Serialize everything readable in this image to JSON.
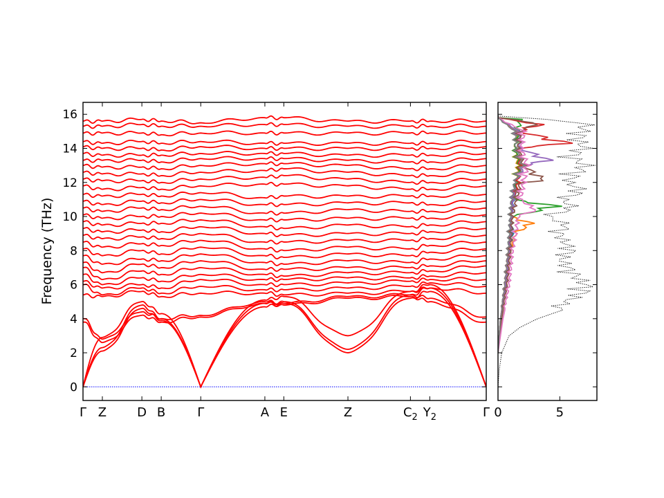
{
  "chart_data": [
    {
      "type": "line",
      "title": "",
      "ylabel": "Frequency (THz)",
      "xlabel": "",
      "ylim": [
        -0.8,
        16.7
      ],
      "yticks": [
        0,
        2,
        4,
        6,
        8,
        10,
        12,
        14,
        16
      ],
      "x_points": [
        {
          "label": "Γ",
          "sub": "",
          "pos": 0.0
        },
        {
          "label": "Z",
          "sub": "",
          "pos": 0.048
        },
        {
          "label": "D",
          "sub": "",
          "pos": 0.146
        },
        {
          "label": "B",
          "sub": "",
          "pos": 0.194
        },
        {
          "label": "Γ",
          "sub": "",
          "pos": 0.292
        },
        {
          "label": "A",
          "sub": "",
          "pos": 0.451
        },
        {
          "label": "E",
          "sub": "",
          "pos": 0.498
        },
        {
          "label": "Z",
          "sub": "",
          "pos": 0.657
        },
        {
          "label": "C",
          "sub": "2",
          "pos": 0.812
        },
        {
          "label": "Y",
          "sub": "2",
          "pos": 0.86
        },
        {
          "label": "Γ",
          "sub": "",
          "pos": 1.0
        }
      ],
      "series_color": "#ff0000",
      "zero_line_color": "#0000ff",
      "acoustic_branches": [
        {
          "name": "TA1",
          "values": [
            0.0,
            2.1,
            4.6,
            3.9,
            0.0,
            4.7,
            4.9,
            2.0,
            5.2,
            5.6,
            0.0
          ]
        },
        {
          "name": "TA2",
          "values": [
            0.0,
            2.3,
            4.8,
            4.0,
            0.0,
            4.9,
            5.0,
            2.2,
            5.4,
            5.8,
            0.0
          ]
        },
        {
          "name": "LA",
          "values": [
            0.0,
            2.9,
            5.0,
            4.3,
            0.0,
            5.1,
            5.3,
            3.0,
            5.6,
            6.0,
            0.0
          ]
        }
      ],
      "optical_branches": [
        [
          3.8,
          2.6,
          4.2,
          3.8,
          4.1,
          4.9,
          4.8,
          5.2,
          5.3,
          5.0,
          3.8
        ],
        [
          4.0,
          2.8,
          4.4,
          4.0,
          4.2,
          5.0,
          4.9,
          5.3,
          5.4,
          5.2,
          4.1
        ],
        [
          5.4,
          5.3,
          5.6,
          5.3,
          5.5,
          5.5,
          5.4,
          5.5,
          5.6,
          5.8,
          5.5
        ],
        [
          6.0,
          5.4,
          5.8,
          5.5,
          5.9,
          5.7,
          5.7,
          5.8,
          5.9,
          6.1,
          5.9
        ],
        [
          6.2,
          5.8,
          6.0,
          5.8,
          6.3,
          6.0,
          6.0,
          6.1,
          6.2,
          6.3,
          6.3
        ],
        [
          6.6,
          6.0,
          6.4,
          6.2,
          6.6,
          6.3,
          6.3,
          6.4,
          6.4,
          6.5,
          6.7
        ],
        [
          7.0,
          6.3,
          6.8,
          6.6,
          7.0,
          6.6,
          6.5,
          6.7,
          6.7,
          6.8,
          7.1
        ],
        [
          7.3,
          6.7,
          7.2,
          7.0,
          7.4,
          6.9,
          6.9,
          7.0,
          7.0,
          7.1,
          7.4
        ],
        [
          7.7,
          7.2,
          7.5,
          7.4,
          7.8,
          7.3,
          7.2,
          7.4,
          7.3,
          7.5,
          7.7
        ],
        [
          8.1,
          7.7,
          8.0,
          7.8,
          8.2,
          7.7,
          7.6,
          7.8,
          7.7,
          7.9,
          8.1
        ],
        [
          8.5,
          8.2,
          8.4,
          8.3,
          8.6,
          8.1,
          8.0,
          8.2,
          8.1,
          8.3,
          8.5
        ],
        [
          8.9,
          8.7,
          8.8,
          8.7,
          9.0,
          8.5,
          8.5,
          8.6,
          8.6,
          8.7,
          8.9
        ],
        [
          9.3,
          9.1,
          9.2,
          9.1,
          9.4,
          9.0,
          8.9,
          9.0,
          9.0,
          9.1,
          9.3
        ],
        [
          9.7,
          9.5,
          9.6,
          9.6,
          9.8,
          9.4,
          9.3,
          9.5,
          9.4,
          9.5,
          9.7
        ],
        [
          10.1,
          9.9,
          10.0,
          10.0,
          10.2,
          9.8,
          9.8,
          9.9,
          9.9,
          9.9,
          10.1
        ],
        [
          10.5,
          10.3,
          10.5,
          10.4,
          10.6,
          10.2,
          10.2,
          10.4,
          10.3,
          10.3,
          10.5
        ],
        [
          10.9,
          10.7,
          10.9,
          10.8,
          11.0,
          10.7,
          10.7,
          10.8,
          10.8,
          10.7,
          10.9
        ],
        [
          11.3,
          11.2,
          11.3,
          11.2,
          11.4,
          11.1,
          11.2,
          11.2,
          11.2,
          11.2,
          11.3
        ],
        [
          11.8,
          11.6,
          11.7,
          11.6,
          11.8,
          11.9,
          11.9,
          11.8,
          11.6,
          11.6,
          11.8
        ],
        [
          12.2,
          12.1,
          12.1,
          12.0,
          12.2,
          12.3,
          12.4,
          12.2,
          12.0,
          12.0,
          12.2
        ],
        [
          12.6,
          12.5,
          12.5,
          12.4,
          12.6,
          12.7,
          12.8,
          12.6,
          12.4,
          12.4,
          12.6
        ],
        [
          13.0,
          12.9,
          12.9,
          12.8,
          13.0,
          13.1,
          13.1,
          13.0,
          12.8,
          12.8,
          13.0
        ],
        [
          13.3,
          13.3,
          13.3,
          13.2,
          13.4,
          13.4,
          13.4,
          13.3,
          13.2,
          13.2,
          13.4
        ],
        [
          13.7,
          13.6,
          13.6,
          13.6,
          13.7,
          13.7,
          13.7,
          13.6,
          13.6,
          13.6,
          13.7
        ],
        [
          14.1,
          14.0,
          14.0,
          13.9,
          14.1,
          14.0,
          14.0,
          14.0,
          14.0,
          14.0,
          14.1
        ],
        [
          14.4,
          14.3,
          14.4,
          14.3,
          14.4,
          14.3,
          14.3,
          14.3,
          14.3,
          14.3,
          14.4
        ],
        [
          14.9,
          14.9,
          14.9,
          14.8,
          14.9,
          14.9,
          14.9,
          14.9,
          14.9,
          14.9,
          14.9
        ],
        [
          15.3,
          15.3,
          15.4,
          15.3,
          15.3,
          15.4,
          15.4,
          15.3,
          15.3,
          15.3,
          15.3
        ],
        [
          15.6,
          15.6,
          15.7,
          15.6,
          15.5,
          15.8,
          15.8,
          15.6,
          15.6,
          15.6,
          15.6
        ]
      ]
    },
    {
      "type": "line",
      "title": "",
      "xlabel": "",
      "ylabel": "",
      "xlim": [
        0,
        8
      ],
      "xticks": [
        0,
        5
      ],
      "total_dos": {
        "style": "dotted",
        "color": "#000000",
        "freq": [
          0,
          1,
          2,
          3,
          3.5,
          4,
          4.5,
          5,
          5.5,
          6,
          6.5,
          7,
          7.5,
          8,
          8.5,
          9,
          9.5,
          10,
          10.5,
          11,
          11.5,
          12,
          12.5,
          13,
          13.5,
          14,
          14.5,
          15,
          15.5,
          15.9
        ],
        "values": [
          0,
          0.1,
          0.3,
          0.9,
          1.8,
          3.2,
          5.2,
          6.1,
          7.6,
          7.9,
          7.0,
          6.3,
          5.7,
          6.6,
          6.0,
          5.5,
          6.2,
          4.5,
          6.8,
          5.8,
          7.6,
          6.3,
          7.0,
          7.9,
          6.5,
          7.8,
          7.2,
          7.6,
          7.9,
          0
        ]
      },
      "projected_dos": [
        {
          "color": "#1f77b4",
          "freq": [
            2,
            4,
            6,
            8,
            9,
            10,
            11,
            12,
            13,
            14,
            15,
            15.8
          ],
          "values": [
            0,
            0.2,
            0.7,
            1.0,
            1.3,
            1.2,
            1.4,
            1.7,
            1.9,
            1.5,
            1.8,
            0
          ]
        },
        {
          "color": "#ff7f0e",
          "freq": [
            2,
            4,
            6,
            8,
            9,
            9.6,
            10,
            11,
            12,
            13,
            14,
            15,
            15.8
          ],
          "values": [
            0,
            0.2,
            0.8,
            1.1,
            1.6,
            3.0,
            1.2,
            1.3,
            1.6,
            1.8,
            1.5,
            1.7,
            0
          ]
        },
        {
          "color": "#2ca02c",
          "freq": [
            2,
            4,
            6,
            8,
            9,
            10,
            10.6,
            11,
            12,
            13,
            14,
            15.7,
            15.8
          ],
          "values": [
            0,
            0.2,
            0.7,
            1.0,
            1.2,
            1.3,
            5.3,
            1.4,
            1.6,
            1.9,
            1.5,
            2.0,
            0
          ]
        },
        {
          "color": "#d62728",
          "freq": [
            2,
            4,
            6,
            8,
            10,
            11,
            12,
            13,
            14,
            14.3,
            15,
            15.4,
            15.8
          ],
          "values": [
            0,
            0.2,
            0.6,
            0.9,
            1.2,
            1.3,
            1.8,
            2.0,
            1.7,
            6.3,
            2.0,
            3.8,
            0
          ]
        },
        {
          "color": "#9467bd",
          "freq": [
            2,
            4,
            6,
            8,
            10,
            12,
            13,
            13.3,
            14,
            15,
            15.8
          ],
          "values": [
            0,
            0.2,
            0.7,
            1.0,
            1.2,
            1.5,
            2.4,
            4.6,
            2.0,
            1.8,
            0
          ]
        },
        {
          "color": "#8c564b",
          "freq": [
            2,
            4,
            6,
            8,
            10,
            12,
            12.1,
            13,
            14,
            15,
            15.5,
            15.8
          ],
          "values": [
            0,
            0.3,
            0.8,
            1.1,
            1.3,
            2.0,
            4.2,
            2.3,
            1.8,
            2.0,
            3.5,
            0
          ]
        },
        {
          "color": "#e377c2",
          "freq": [
            2,
            4,
            6,
            8,
            9,
            10,
            10.4,
            11,
            12,
            13,
            14,
            15,
            15.8
          ],
          "values": [
            0,
            0.4,
            1.0,
            1.3,
            1.6,
            1.8,
            3.4,
            2.0,
            2.3,
            2.6,
            2.1,
            2.3,
            0
          ]
        },
        {
          "color": "#7f7f7f",
          "freq": [
            2,
            4,
            6,
            8,
            10,
            11,
            12,
            13,
            14,
            15,
            15.8
          ],
          "values": [
            0,
            0.2,
            0.6,
            0.9,
            1.1,
            1.2,
            1.5,
            2.2,
            1.6,
            1.5,
            0
          ]
        }
      ]
    }
  ]
}
